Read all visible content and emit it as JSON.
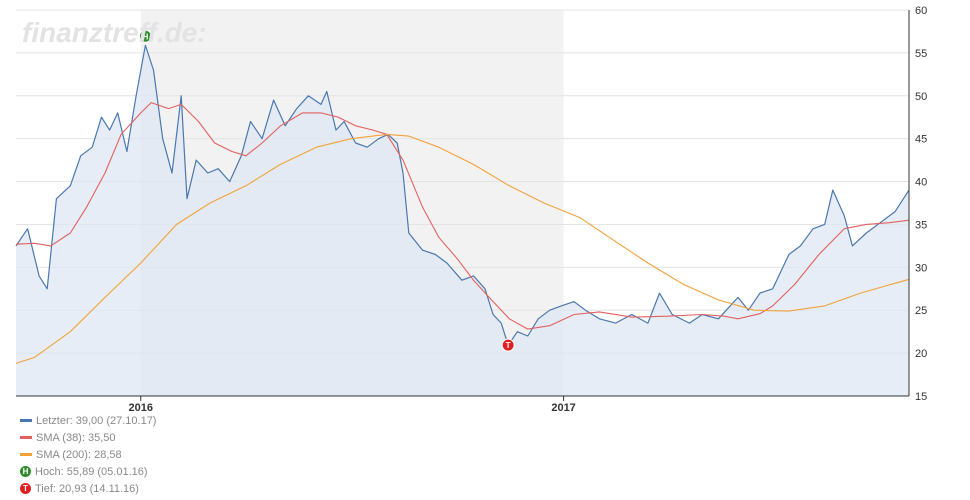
{
  "watermark": "finanztreff.de:",
  "colors": {
    "price": "#4a78ae",
    "area": "#dde7f3",
    "sma38": "#e3605f",
    "sma200": "#f3a23a",
    "shade": "#f2f2f2",
    "high_marker": "#2e8b2e",
    "low_marker": "#e02020"
  },
  "legend": {
    "last": "Letzter: 39,00 (27.10.17)",
    "sma38": "SMA (38): 35,50",
    "sma200": "SMA (200): 28,58",
    "high": "Hoch: 55,89 (05.01.16)",
    "low": "Tief: 20,93 (14.11.16)"
  },
  "markers": {
    "high": {
      "letter": "H",
      "icon": "high-marker-icon",
      "x": "2016-01-05",
      "y": 55.89
    },
    "low": {
      "letter": "T",
      "icon": "low-marker-icon",
      "x": "2016-11-14",
      "y": 20.93
    }
  },
  "chart_data": {
    "type": "line",
    "xlim": [
      "2015-09-15",
      "2017-10-27"
    ],
    "ylim": [
      15,
      60
    ],
    "yticks": [
      15,
      20,
      25,
      30,
      35,
      40,
      45,
      50,
      55,
      60
    ],
    "xticks": [
      {
        "date": "2016-01-01",
        "label": "2016"
      },
      {
        "date": "2017-01-01",
        "label": "2017"
      }
    ],
    "shaded_range": [
      "2016-01-01",
      "2017-01-01"
    ],
    "grid": true,
    "y_axis_side": "right",
    "series": [
      {
        "name": "Letzter",
        "key": "price",
        "style": "area",
        "points": [
          [
            "2015-09-15",
            32.5
          ],
          [
            "2015-09-25",
            34.5
          ],
          [
            "2015-10-05",
            29
          ],
          [
            "2015-10-12",
            27.5
          ],
          [
            "2015-10-20",
            38
          ],
          [
            "2015-11-01",
            39.5
          ],
          [
            "2015-11-10",
            43
          ],
          [
            "2015-11-20",
            44
          ],
          [
            "2015-11-28",
            47.5
          ],
          [
            "2015-12-05",
            46
          ],
          [
            "2015-12-12",
            48
          ],
          [
            "2015-12-20",
            43.5
          ],
          [
            "2015-12-28",
            50
          ],
          [
            "2016-01-05",
            55.89
          ],
          [
            "2016-01-12",
            53
          ],
          [
            "2016-01-20",
            45
          ],
          [
            "2016-01-28",
            41
          ],
          [
            "2016-02-05",
            50
          ],
          [
            "2016-02-10",
            38
          ],
          [
            "2016-02-18",
            42.5
          ],
          [
            "2016-02-28",
            41
          ],
          [
            "2016-03-08",
            41.5
          ],
          [
            "2016-03-18",
            40
          ],
          [
            "2016-03-28",
            43
          ],
          [
            "2016-04-05",
            47
          ],
          [
            "2016-04-15",
            45
          ],
          [
            "2016-04-25",
            49.5
          ],
          [
            "2016-05-05",
            46.5
          ],
          [
            "2016-05-15",
            48.5
          ],
          [
            "2016-05-25",
            50
          ],
          [
            "2016-06-05",
            49
          ],
          [
            "2016-06-10",
            50.5
          ],
          [
            "2016-06-18",
            46
          ],
          [
            "2016-06-25",
            47
          ],
          [
            "2016-07-05",
            44.5
          ],
          [
            "2016-07-15",
            44
          ],
          [
            "2016-07-25",
            45
          ],
          [
            "2016-08-02",
            45.5
          ],
          [
            "2016-08-10",
            44.5
          ],
          [
            "2016-08-15",
            41
          ],
          [
            "2016-08-20",
            34
          ],
          [
            "2016-09-01",
            32
          ],
          [
            "2016-09-12",
            31.5
          ],
          [
            "2016-09-22",
            30.5
          ],
          [
            "2016-10-05",
            28.5
          ],
          [
            "2016-10-15",
            29
          ],
          [
            "2016-10-25",
            27.5
          ],
          [
            "2016-11-01",
            24.5
          ],
          [
            "2016-11-08",
            23.5
          ],
          [
            "2016-11-14",
            20.93
          ],
          [
            "2016-11-22",
            22.5
          ],
          [
            "2016-12-01",
            22
          ],
          [
            "2016-12-10",
            24
          ],
          [
            "2016-12-20",
            25
          ],
          [
            "2016-12-30",
            25.5
          ],
          [
            "2017-01-10",
            26
          ],
          [
            "2017-01-20",
            25
          ],
          [
            "2017-02-01",
            24
          ],
          [
            "2017-02-15",
            23.5
          ],
          [
            "2017-03-01",
            24.5
          ],
          [
            "2017-03-15",
            23.5
          ],
          [
            "2017-03-25",
            27
          ],
          [
            "2017-04-05",
            24.5
          ],
          [
            "2017-04-20",
            23.5
          ],
          [
            "2017-05-01",
            24.5
          ],
          [
            "2017-05-15",
            24
          ],
          [
            "2017-06-01",
            26.5
          ],
          [
            "2017-06-10",
            25
          ],
          [
            "2017-06-20",
            27
          ],
          [
            "2017-07-01",
            27.5
          ],
          [
            "2017-07-15",
            31.5
          ],
          [
            "2017-07-25",
            32.5
          ],
          [
            "2017-08-05",
            34.5
          ],
          [
            "2017-08-15",
            35
          ],
          [
            "2017-08-22",
            39
          ],
          [
            "2017-09-01",
            36
          ],
          [
            "2017-09-08",
            32.5
          ],
          [
            "2017-09-20",
            34
          ],
          [
            "2017-10-05",
            35.5
          ],
          [
            "2017-10-15",
            36.5
          ],
          [
            "2017-10-27",
            39
          ]
        ]
      },
      {
        "name": "SMA (38)",
        "key": "sma38",
        "style": "line",
        "points": [
          [
            "2015-09-15",
            32.7
          ],
          [
            "2015-10-01",
            32.8
          ],
          [
            "2015-10-15",
            32.5
          ],
          [
            "2015-11-01",
            34
          ],
          [
            "2015-11-15",
            37
          ],
          [
            "2015-12-01",
            41
          ],
          [
            "2015-12-15",
            45.5
          ],
          [
            "2016-01-01",
            48
          ],
          [
            "2016-01-10",
            49.2
          ],
          [
            "2016-01-25",
            48.5
          ],
          [
            "2016-02-05",
            49
          ],
          [
            "2016-02-20",
            47
          ],
          [
            "2016-03-05",
            44.5
          ],
          [
            "2016-03-20",
            43.5
          ],
          [
            "2016-04-01",
            43
          ],
          [
            "2016-04-15",
            44.5
          ],
          [
            "2016-05-01",
            46.5
          ],
          [
            "2016-05-20",
            48
          ],
          [
            "2016-06-05",
            48
          ],
          [
            "2016-06-20",
            47.5
          ],
          [
            "2016-07-05",
            46.5
          ],
          [
            "2016-07-20",
            46
          ],
          [
            "2016-08-01",
            45.5
          ],
          [
            "2016-08-15",
            42.5
          ],
          [
            "2016-09-01",
            37
          ],
          [
            "2016-09-15",
            33.5
          ],
          [
            "2016-10-01",
            31
          ],
          [
            "2016-10-15",
            28.5
          ],
          [
            "2016-11-01",
            26
          ],
          [
            "2016-11-15",
            24
          ],
          [
            "2016-12-01",
            22.8
          ],
          [
            "2016-12-20",
            23.2
          ],
          [
            "2017-01-10",
            24.5
          ],
          [
            "2017-02-01",
            24.8
          ],
          [
            "2017-03-01",
            24.2
          ],
          [
            "2017-04-01",
            24.3
          ],
          [
            "2017-05-01",
            24.5
          ],
          [
            "2017-05-20",
            24.3
          ],
          [
            "2017-06-01",
            24
          ],
          [
            "2017-06-20",
            24.6
          ],
          [
            "2017-07-01",
            25.5
          ],
          [
            "2017-07-20",
            28
          ],
          [
            "2017-08-10",
            31.5
          ],
          [
            "2017-09-01",
            34.5
          ],
          [
            "2017-09-20",
            35
          ],
          [
            "2017-10-10",
            35.2
          ],
          [
            "2017-10-27",
            35.5
          ]
        ]
      },
      {
        "name": "SMA (200)",
        "key": "sma200",
        "style": "line",
        "points": [
          [
            "2015-09-15",
            18.8
          ],
          [
            "2015-10-01",
            19.5
          ],
          [
            "2015-11-01",
            22.5
          ],
          [
            "2015-12-01",
            26.5
          ],
          [
            "2016-01-01",
            30.5
          ],
          [
            "2016-02-01",
            35
          ],
          [
            "2016-03-01",
            37.5
          ],
          [
            "2016-04-01",
            39.5
          ],
          [
            "2016-05-01",
            42
          ],
          [
            "2016-06-01",
            44
          ],
          [
            "2016-07-01",
            45
          ],
          [
            "2016-08-01",
            45.5
          ],
          [
            "2016-08-20",
            45.3
          ],
          [
            "2016-09-15",
            44
          ],
          [
            "2016-10-15",
            42
          ],
          [
            "2016-11-15",
            39.5
          ],
          [
            "2016-12-15",
            37.5
          ],
          [
            "2017-01-15",
            35.8
          ],
          [
            "2017-02-15",
            33
          ],
          [
            "2017-03-15",
            30.5
          ],
          [
            "2017-04-15",
            28
          ],
          [
            "2017-05-15",
            26.2
          ],
          [
            "2017-06-15",
            25
          ],
          [
            "2017-07-15",
            24.9
          ],
          [
            "2017-08-15",
            25.5
          ],
          [
            "2017-09-15",
            27
          ],
          [
            "2017-10-27",
            28.6
          ]
        ]
      }
    ]
  }
}
